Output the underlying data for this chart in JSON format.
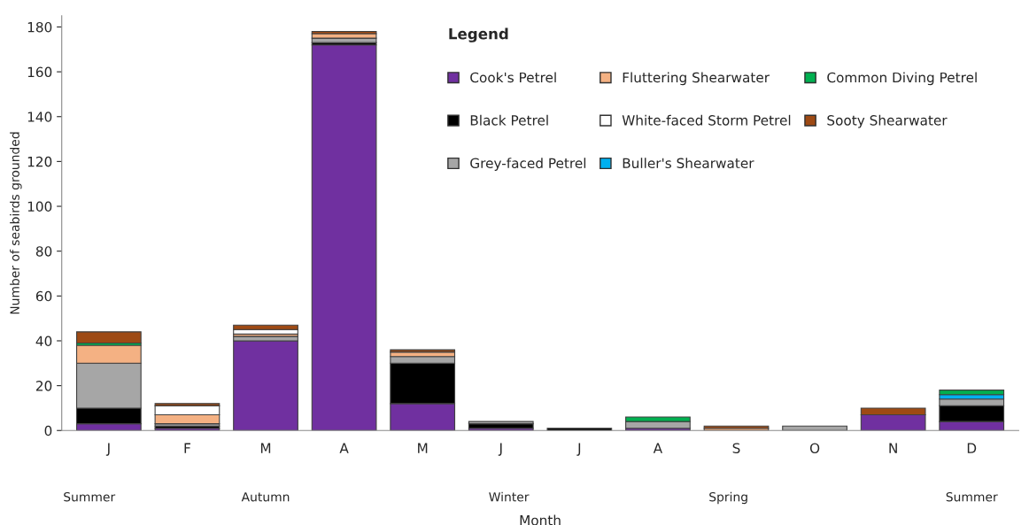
{
  "chart_data": {
    "type": "bar",
    "stacked": true,
    "xlabel": "Month",
    "ylabel": "Number of seabirds grounded",
    "legend_title": "Legend",
    "legend": "top right",
    "grid": false,
    "categories": [
      "J",
      "F",
      "M",
      "A",
      "M",
      "J",
      "J",
      "A",
      "S",
      "O",
      "N",
      "D"
    ],
    "ylim": [
      0,
      185
    ],
    "yticks": [
      0,
      20,
      40,
      60,
      80,
      100,
      120,
      140,
      160,
      180
    ],
    "annotations": [
      "Summer",
      "Autumn",
      "Winter",
      "Spring",
      "Summer"
    ],
    "series": [
      {
        "name": "Cook's Petrel",
        "color": "#7030a0",
        "values": [
          3,
          1,
          40,
          172,
          12,
          1,
          0,
          1,
          0,
          0,
          7,
          4
        ]
      },
      {
        "name": "Black Petrel",
        "color": "#000000",
        "values": [
          7,
          1,
          0,
          1,
          18,
          2,
          1,
          0,
          0,
          0,
          0,
          7
        ]
      },
      {
        "name": "Grey-faced Petrel",
        "color": "#a6a6a6",
        "values": [
          20,
          1,
          2,
          2,
          3,
          1,
          0,
          3,
          0,
          2,
          0,
          3
        ]
      },
      {
        "name": "Fluttering Shearwater",
        "color": "#f4b183",
        "values": [
          8,
          4,
          1,
          2,
          2,
          0,
          0,
          0,
          1,
          0,
          0,
          0
        ]
      },
      {
        "name": "White-faced Storm Petrel",
        "color": "#ffffff",
        "values": [
          0,
          4,
          2,
          0,
          0,
          0,
          0,
          0,
          0,
          0,
          0,
          0
        ]
      },
      {
        "name": "Buller's Shearwater",
        "color": "#00b0f0",
        "values": [
          0,
          0,
          0,
          0,
          0,
          0,
          0,
          0,
          0,
          0,
          0,
          2
        ]
      },
      {
        "name": "Common Diving Petrel",
        "color": "#00b050",
        "values": [
          1,
          0,
          0,
          0,
          0,
          0,
          0,
          2,
          0,
          0,
          0,
          2
        ]
      },
      {
        "name": "Sooty Shearwater",
        "color": "#9e4a14",
        "values": [
          5,
          1,
          2,
          1,
          1,
          0,
          0,
          0,
          1,
          0,
          3,
          0
        ]
      }
    ]
  }
}
